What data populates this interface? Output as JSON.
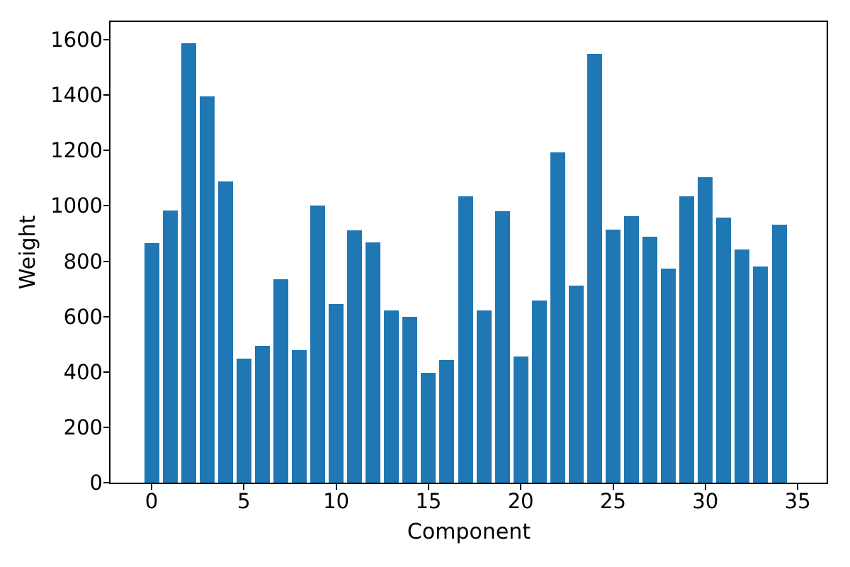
{
  "chart_data": {
    "type": "bar",
    "title": "",
    "xlabel": "Component",
    "ylabel": "Weight",
    "x": [
      0,
      1,
      2,
      3,
      4,
      5,
      6,
      7,
      8,
      9,
      10,
      11,
      12,
      13,
      14,
      15,
      16,
      17,
      18,
      19,
      20,
      21,
      22,
      23,
      24,
      25,
      26,
      27,
      28,
      29,
      30,
      31,
      32,
      33,
      34
    ],
    "values": [
      866,
      982,
      1588,
      1394,
      1089,
      449,
      493,
      734,
      478,
      1002,
      646,
      912,
      867,
      621,
      598,
      396,
      442,
      1033,
      621,
      981,
      455,
      659,
      1192,
      711,
      1548,
      915,
      963,
      888,
      772,
      1034,
      1103,
      957,
      841,
      780,
      932
    ],
    "bar_color": "#1f77b4",
    "axis_color": "#000000",
    "background": "#ffffff",
    "xticks": [
      0,
      5,
      10,
      15,
      20,
      25,
      30,
      35
    ],
    "yticks": [
      0,
      200,
      400,
      600,
      800,
      1000,
      1200,
      1400,
      1600
    ],
    "ylim": [
      0,
      1664
    ],
    "grid": false,
    "legend": false
  }
}
